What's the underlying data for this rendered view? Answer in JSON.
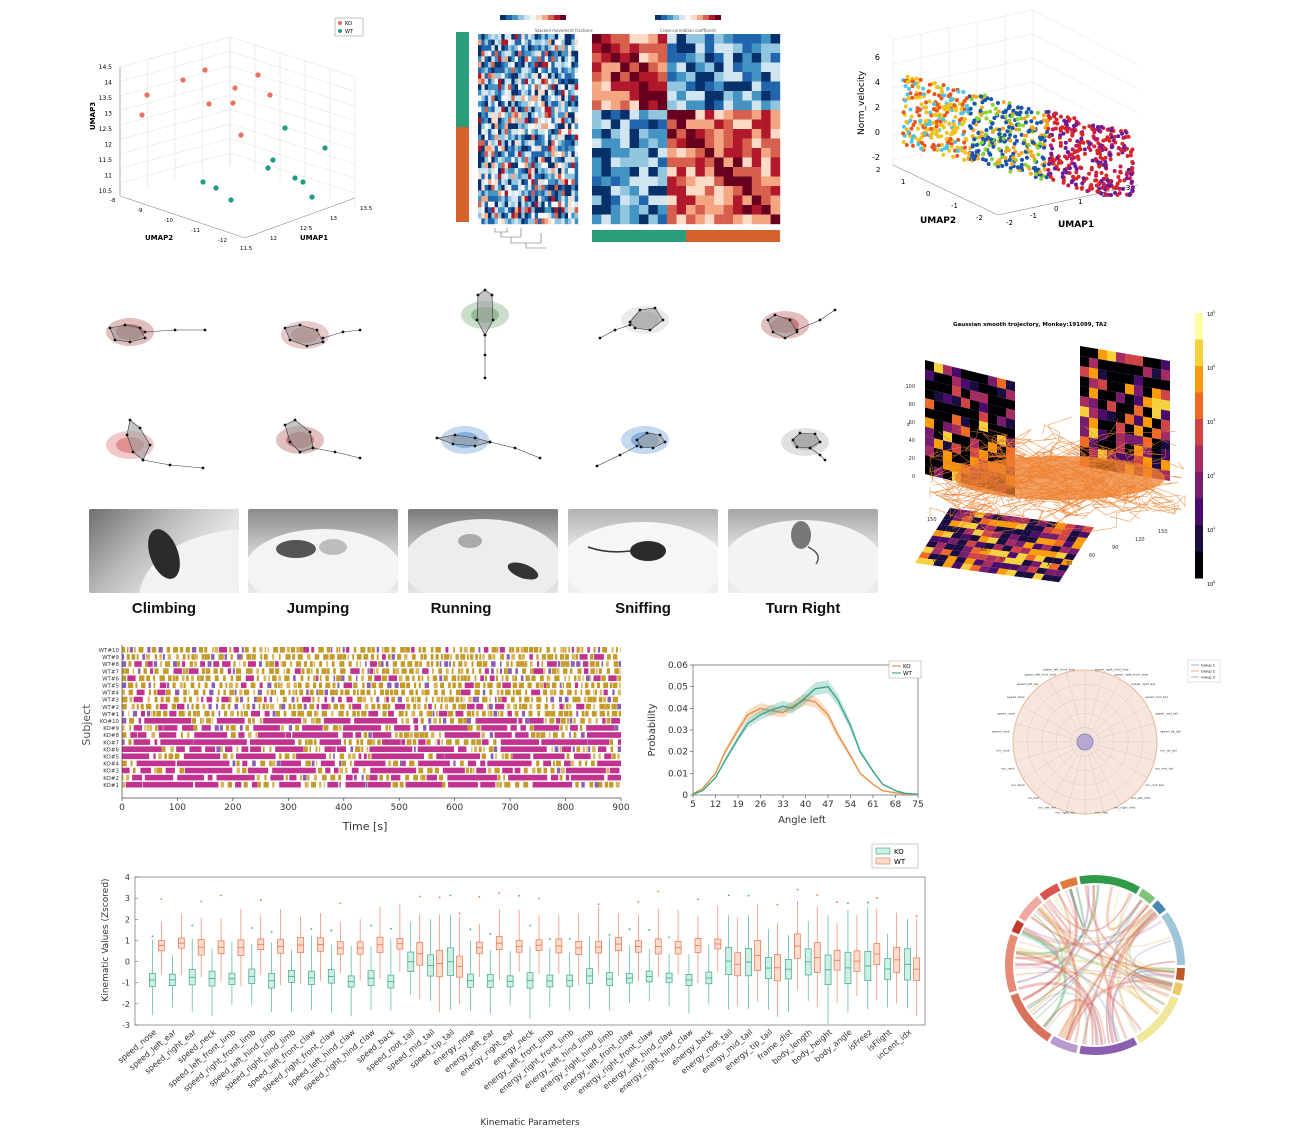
{
  "umap3d_groups": {
    "legend": [
      "KO",
      "WT"
    ],
    "colors": {
      "KO": "#ef6f62",
      "WT": "#1f9a85"
    },
    "xlabel": "UMAP1",
    "ylabel": "UMAP2",
    "zlabel": "UMAP3",
    "zticks": [
      "14.5",
      "14",
      "13.5",
      "13",
      "12.5",
      "12",
      "11.5",
      "11",
      "10.5"
    ],
    "yticks": [
      "-8",
      "-9",
      "-10",
      "-11",
      "-12"
    ],
    "xticks": [
      "11.5",
      "12",
      "12.5",
      "13",
      "13.5"
    ]
  },
  "heatmap": {
    "title_left": "Stacked movement fractions",
    "title_right": "Cross-correlation coefficient",
    "group_colors": [
      "#2a9d7a",
      "#d4622a"
    ]
  },
  "umap_velocity": {
    "xlabel": "UMAP1",
    "ylabel": "UMAP2",
    "zlabel": "Norm_velocity",
    "zticks": [
      "6",
      "4",
      "2",
      "0",
      "-2"
    ],
    "yticks": [
      "2",
      "1",
      "0",
      "-1",
      "-2"
    ],
    "xticks": [
      "-2",
      "-1",
      "0",
      "1",
      "2",
      "3"
    ]
  },
  "behaviors": {
    "labels": [
      "Climbing",
      "Jumping",
      "Running",
      "Sniffing",
      "Turn Right"
    ]
  },
  "trajectory": {
    "title": "Gaussian smooth trojectory, Monkey:191099, TA2",
    "zticks": [
      "100",
      "80",
      "60",
      "40",
      "20",
      "0"
    ],
    "xticks": [
      "0",
      "30",
      "60",
      "90",
      "120",
      "150"
    ],
    "yticks": [
      "150",
      "120",
      "90",
      "60",
      "30",
      "0"
    ],
    "xlabel": "X",
    "ylabel": "Y",
    "zlabel": "z",
    "cbar_ticks": [
      "10",
      "10",
      "10",
      "10",
      "10",
      "10"
    ],
    "cbar_exps": [
      "5",
      "4",
      "3",
      "2",
      "1",
      "0"
    ]
  },
  "ethogram": {
    "ylabel": "Subject",
    "xlabel": "Time [s]",
    "subjects": [
      "WT#10",
      "WT#9",
      "WT#8",
      "WT#7",
      "WT#6",
      "WT#5",
      "WT#4",
      "WT#3",
      "WT#2",
      "WT#1",
      "KO#10",
      "KO#9",
      "KO#8",
      "KO#7",
      "KO#6",
      "KO#5",
      "KO#4",
      "KO#3",
      "KO#2",
      "KO#1"
    ],
    "xticks": [
      "0",
      "100",
      "200",
      "300",
      "400",
      "500",
      "600",
      "700",
      "800",
      "900"
    ],
    "colors": [
      "#c49a2a",
      "#c2338f",
      "#8a5fb0",
      "#d9b45a"
    ]
  },
  "chart_data": {
    "type": "line",
    "xlabel": "Angle left",
    "ylabel": "Probability",
    "x": [
      5,
      8,
      12,
      15,
      19,
      22,
      26,
      29,
      33,
      36,
      40,
      43,
      47,
      50,
      54,
      57,
      61,
      64,
      68,
      71,
      75
    ],
    "xticks": [
      "5",
      "12",
      "19",
      "26",
      "33",
      "40",
      "47",
      "54",
      "61",
      "68",
      "75"
    ],
    "yticks": [
      "0",
      "0.01",
      "0.02",
      "0.03",
      "0.04",
      "0.05",
      "0.06"
    ],
    "ylim": [
      0,
      0.06
    ],
    "series": [
      {
        "name": "KO",
        "color": "#e8924a",
        "values": [
          0.0005,
          0.003,
          0.01,
          0.02,
          0.03,
          0.037,
          0.04,
          0.039,
          0.038,
          0.041,
          0.044,
          0.043,
          0.037,
          0.028,
          0.018,
          0.01,
          0.005,
          0.002,
          0.001,
          0.0005,
          0.0002
        ]
      },
      {
        "name": "WT",
        "color": "#3aa68e",
        "values": [
          0.0003,
          0.002,
          0.008,
          0.016,
          0.026,
          0.033,
          0.037,
          0.039,
          0.041,
          0.04,
          0.045,
          0.049,
          0.05,
          0.044,
          0.032,
          0.02,
          0.011,
          0.005,
          0.002,
          0.0008,
          0.0003
        ]
      }
    ]
  },
  "radar": {
    "legend": [
      "Group 1",
      "Group 2",
      "Group 3"
    ],
    "colors": [
      "#a9a9c9",
      "#f2b08a",
      "#b8b8b8"
    ],
    "labels_left": [
      "speed_left_front_limb",
      "speed_left_hind_limb",
      "speed_left_ear",
      "speed_back",
      "speed_nose",
      "speed_neck",
      "mu_nose",
      "mu_neck",
      "mu_back",
      "mu_tail",
      "mu_left_ear",
      "mu_right_ear"
    ],
    "labels_right": [
      "speed_right_hind_limb",
      "speed_right_front_limb",
      "speed_right_ear",
      "speed_mid_tail",
      "speed_root_tail",
      "speed_tip_tail",
      "mu_tip_tail",
      "mu_mid_tail",
      "mu_root_tail",
      "mu_left_limb",
      "mu_right_limb",
      "mu_claw"
    ]
  },
  "boxplot": {
    "ylabel": "Kinematic Values (Zscored)",
    "xlabel": "Kinematic Parameters",
    "legend": [
      "KO",
      "WT"
    ],
    "colors": {
      "KO": "#3aa68e",
      "WT": "#e8724a"
    },
    "yticks": [
      "4",
      "3",
      "2",
      "1",
      "0",
      "-1",
      "-2",
      "-3"
    ],
    "params": [
      "speed_nose",
      "speed_left_ear",
      "speed_right_ear",
      "speed_neck",
      "speed_left_front_limb",
      "speed_right_front_limb",
      "speed_left_hind_limb",
      "speed_right_hind_limb",
      "speed_left_front_claw",
      "speed_right_front_claw",
      "speed_left_hind_claw",
      "speed_right_hind_claw",
      "speed_back",
      "speed_root_tail",
      "speed_mid_tail",
      "speed_tip_tail",
      "energy_nose",
      "energy_left_ear",
      "energy_right_ear",
      "energy_neck",
      "energy_left_front_limb",
      "energy_right_front_limb",
      "energy_left_hind_limb",
      "energy_right_hind_limb",
      "energy_left_front_claw",
      "energy_right_front_claw",
      "energy_left_hind_claw",
      "energy_right_hind_claw",
      "energy_back",
      "energy_root_tail",
      "energy_mid_tail",
      "energy_tip_tail",
      "frame_dist",
      "body_length",
      "body_height",
      "body_angle",
      "isFreez",
      "isFlight",
      "inCent_idx"
    ]
  },
  "chord": {
    "colors": [
      "#2f9a4a",
      "#7fc47a",
      "#4a86b0",
      "#9ec5d8",
      "#b85a2a",
      "#e9c86a",
      "#efe79a",
      "#8a5fb0",
      "#b89ad0",
      "#d9725a",
      "#e88a78",
      "#c0392b",
      "#f0a8a0",
      "#d9534f",
      "#e07a3a"
    ]
  }
}
